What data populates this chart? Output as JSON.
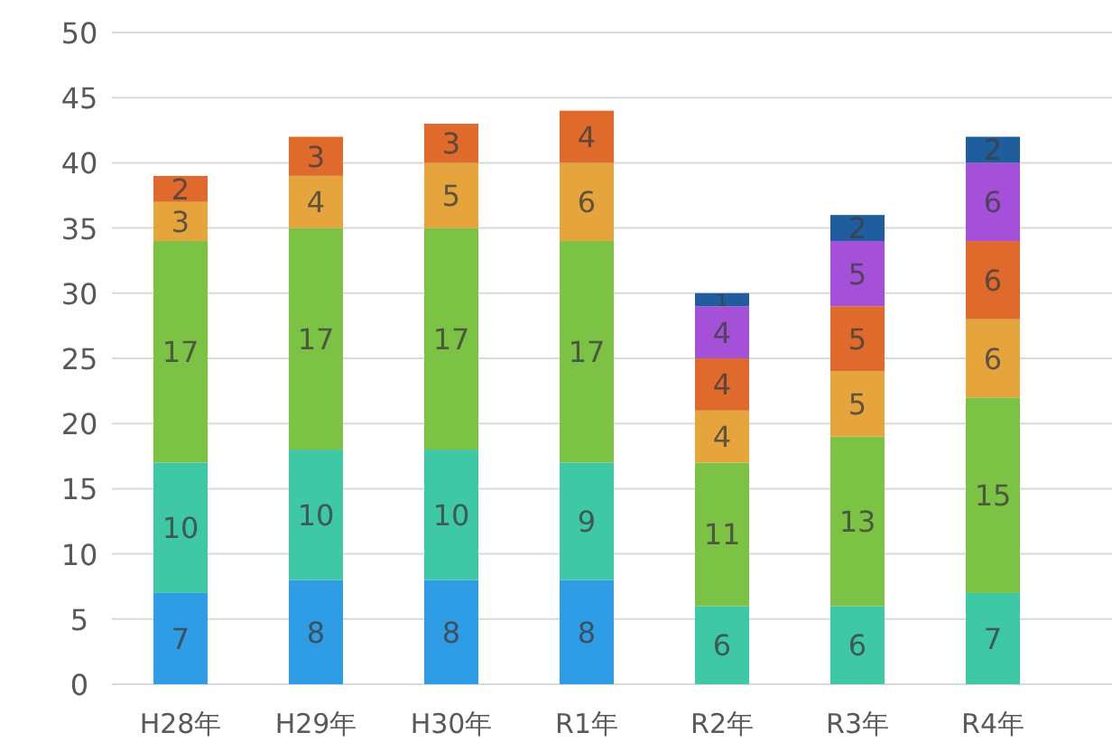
{
  "chart_data": {
    "type": "bar",
    "stacked": true,
    "data_labels": true,
    "grid": "y",
    "categories": [
      "H28年",
      "H29年",
      "H30年",
      "R1年",
      "R2年",
      "R3年",
      "R4年"
    ],
    "ylim": [
      0,
      50
    ],
    "yticks": [
      0,
      5,
      10,
      15,
      20,
      25,
      30,
      35,
      40,
      45,
      50
    ],
    "series": [
      {
        "color": "#2e9de6",
        "values": [
          7,
          8,
          8,
          8,
          null,
          null,
          null
        ]
      },
      {
        "color": "#3ec8a6",
        "values": [
          10,
          10,
          10,
          9,
          6,
          6,
          7
        ]
      },
      {
        "color": "#7cc244",
        "values": [
          17,
          17,
          17,
          17,
          11,
          13,
          15
        ]
      },
      {
        "color": "#e6a43c",
        "values": [
          3,
          4,
          5,
          6,
          4,
          5,
          6
        ]
      },
      {
        "color": "#e0692c",
        "values": [
          2,
          3,
          3,
          4,
          4,
          5,
          6
        ]
      },
      {
        "color": "#a450d8",
        "values": [
          null,
          null,
          null,
          null,
          4,
          5,
          6
        ]
      },
      {
        "color": "#1f5d9e",
        "values": [
          null,
          null,
          null,
          null,
          1,
          2,
          2
        ]
      }
    ]
  }
}
